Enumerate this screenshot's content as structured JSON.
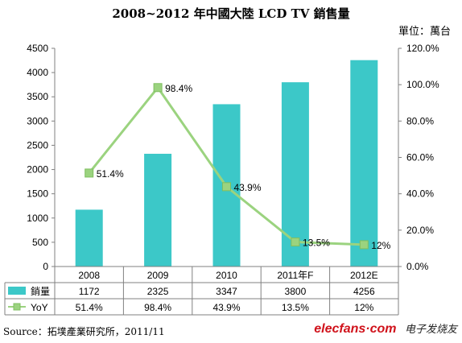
{
  "title": "2008~2012 年中國大陸 LCD TV 銷售量",
  "unit": "單位：萬台",
  "source": "Source：拓墣產業研究所，2011/11",
  "watermark": {
    "brand": "elecfans·com",
    "cn": "电子发烧友"
  },
  "colors": {
    "bar": "#3cc8c8",
    "line": "#9bd37f",
    "marker": "#9bd37f",
    "axis": "#808080"
  },
  "chart_data": {
    "type": "bar",
    "categories": [
      "2008",
      "2009",
      "2010",
      "2011年F",
      "2012E"
    ],
    "series": [
      {
        "name": "銷量",
        "type": "bar",
        "axis": "left",
        "values": [
          1172,
          2325,
          3347,
          3800,
          4256
        ]
      },
      {
        "name": "YoY",
        "type": "line",
        "axis": "right",
        "values": [
          51.4,
          98.4,
          43.9,
          13.5,
          12
        ]
      }
    ],
    "y_left": {
      "min": 0,
      "max": 4500,
      "ticks": [
        0,
        500,
        1000,
        1500,
        2000,
        2500,
        3000,
        3500,
        4000,
        4500
      ]
    },
    "y_right": {
      "min": 0,
      "max": 120,
      "ticks": [
        "0.0%",
        "20.0%",
        "40.0%",
        "60.0%",
        "80.0%",
        "100.0%",
        "120.0%"
      ],
      "tick_values": [
        0,
        20,
        40,
        60,
        80,
        100,
        120
      ]
    },
    "line_labels": [
      "51.4%",
      "98.4%",
      "43.9%",
      "13.5%",
      "12%"
    ],
    "table": {
      "rows": [
        {
          "name": "銷量",
          "cells": [
            "1172",
            "2325",
            "3347",
            "3800",
            "4256"
          ]
        },
        {
          "name": "YoY",
          "cells": [
            "51.4%",
            "98.4%",
            "43.9%",
            "13.5%",
            "12%"
          ]
        }
      ]
    },
    "grid": false,
    "legend": "data-table"
  }
}
